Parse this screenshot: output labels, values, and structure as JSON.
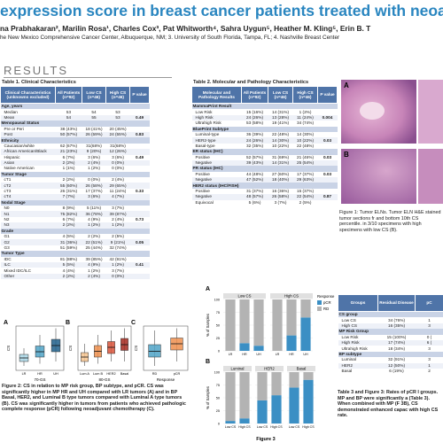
{
  "header": {
    "title": "expression score in breast cancer patients treated with neoad",
    "authors": "na Prabhakaran², Marilin Rosa¹, Charles Cox³, Pat Whitworth⁴, Sahra Uygun⁵, Heather M. Kling⁵, Erin B. T",
    "affiliations": "he New Mexico Comprehensive Cancer Center, Albuquerque, NM; 3. University of South Florida, Tampa, FL; 4. Nashville Breast Center"
  },
  "section": "RESULTS",
  "table1": {
    "title": "Table 1. Clinical Characteristics",
    "columns": [
      "Clinical Characteristics (unknowns excluded)",
      "All Patients (n=92)",
      "Low CS (n=46)",
      "High CS (n=46)",
      "P value"
    ],
    "rows": [
      [
        "Age, years"
      ],
      [
        "Median",
        "53",
        "54",
        "53"
      ],
      [
        "Mean",
        "54",
        "55",
        "53",
        "0.49"
      ],
      [
        "Menopausal Status"
      ],
      [
        "Pre or Peri",
        "38 (43%)",
        "18 (41%)",
        "20 (45%)"
      ],
      [
        "Post",
        "50 (57%)",
        "26 (59%)",
        "24 (55%)",
        "0.83"
      ],
      [
        "Ethnicity"
      ],
      [
        "Caucasian/white",
        "62 (67%)",
        "31(68%)",
        "31(68%)"
      ],
      [
        "African American/Black",
        "21 (23%)",
        "9 (20%)",
        "12 (26%)"
      ],
      [
        "Hispanic",
        "6 (7%)",
        "3 (6%)",
        "3 (6%)",
        "0.49"
      ],
      [
        "Asian",
        "2 (2%)",
        "2 (4%)",
        "0 (0%)"
      ],
      [
        "Native American",
        "1 (1%)",
        "1 (2%)",
        "0 (0%)"
      ],
      [
        "Tumor Stage"
      ],
      [
        "cT1",
        "2 (2%)",
        "0 (0%)",
        "2 (4%)"
      ],
      [
        "cT2",
        "55 (60%)",
        "26 (58%)",
        "29 (65%)"
      ],
      [
        "cT3",
        "26 (31%)",
        "17 (37%)",
        "11 (24%)",
        "0.33"
      ],
      [
        "cT4",
        "7 (7%)",
        "3 (6%)",
        "4 (7%)"
      ],
      [
        "Nodal Stage"
      ],
      [
        "N0",
        "8 (9%)",
        "5 (11%)",
        "3 (7%)"
      ],
      [
        "N1",
        "75 (82%)",
        "36 (78%)",
        "39 (87%)"
      ],
      [
        "N2",
        "6 (7%)",
        "4 (9%)",
        "2 (4%)",
        "0.73"
      ],
      [
        "N3",
        "2 (2%)",
        "1 (2%)",
        "1 (2%)"
      ],
      [
        "Grade"
      ],
      [
        "G1",
        "4 (5%)",
        "2 (2%)",
        "2 (5%)"
      ],
      [
        "G2",
        "31 (36%)",
        "22 (51%)",
        "9 (21%)",
        "0.05"
      ],
      [
        "G3",
        "51 (59%)",
        "25 (44%)",
        "32 (74%)"
      ],
      [
        "Tumor Type"
      ],
      [
        "IDC",
        "81 (88%)",
        "39 (85%)",
        "42 (91%)"
      ],
      [
        "ILC",
        "5 (5%)",
        "4 (9%)",
        "1 (2%)",
        "0.41"
      ],
      [
        "Mixed IDC/ILC",
        "4 (4%)",
        "1 (2%)",
        "3 (7%)"
      ],
      [
        "Other",
        "2 (2%)",
        "2 (4%)",
        "0 (0%)"
      ]
    ]
  },
  "table2": {
    "title": "Table 2. Molecular and Pathology Characteristics",
    "columns": [
      "Molecular and Pathology Results",
      "All Patients (n=92)",
      "Low CS (n=46)",
      "High CS (n=46)",
      "P value"
    ],
    "rows": [
      [
        "MammaPrint Result"
      ],
      [
        "Low Risk",
        "15 (16%)",
        "14 (31%)",
        "1 (2%)"
      ],
      [
        "High Risk",
        "24 (26%)",
        "13 (28%)",
        "11 (24%)",
        "0.004"
      ],
      [
        "Ultrahigh Risk",
        "53 (58%)",
        "19 (41%)",
        "34 (74%)"
      ],
      [
        "BluePrint Subtype"
      ],
      [
        "Luminal-type",
        "36 (39%)",
        "22 (48%)",
        "14 (30%)"
      ],
      [
        "HER2-type",
        "24 (26%)",
        "14 (30%)",
        "10 (22%)",
        "0.03"
      ],
      [
        "Basal-type",
        "32 (35%)",
        "10 (22%)",
        "22 (48%)"
      ],
      [
        "ER status (IHC)"
      ],
      [
        "Positive",
        "52 (57%)",
        "31 (69%)",
        "21 (46%)",
        "0.03"
      ],
      [
        "Negative",
        "39 (43%)",
        "14 (31%)",
        "25 (54%)"
      ],
      [
        "PR status (IHC)"
      ],
      [
        "Positive",
        "44 (48%)",
        "27 (60%)",
        "17 (37%)",
        "0.03"
      ],
      [
        "Negative",
        "47 (52%)",
        "18 (40%)",
        "29 (63%)"
      ],
      [
        "HER2 status (IHC/FISH)"
      ],
      [
        "Positive",
        "31 (37%)",
        "16 (36%)",
        "15 (37%)"
      ],
      [
        "Negative",
        "48 (57%)",
        "26 (58%)",
        "22 (54%)",
        "0.87"
      ],
      [
        "Equivocal",
        "5 (6%)",
        "3 (7%)",
        "2 (5%)"
      ]
    ]
  },
  "figure1": {
    "panels": [
      "A",
      "B"
    ],
    "caption": "Figure 1: Tumor ELNs. Tumor ELN H&E stained tumor sections fr and bottom 10th CS percentile. in 3/10 specimens with high specimens with low CS (B)."
  },
  "figure2": {
    "ylabel": "CS",
    "panels": [
      {
        "label": "A",
        "xlabel": "70-GS",
        "categories": [
          "LR",
          "HR",
          "UH"
        ],
        "colors": [
          "#a9d6e5",
          "#4fa3c7",
          "#1f5f8b"
        ],
        "ylim": [
          0,
          10
        ],
        "boxes": [
          [
            1,
            2,
            2.8,
            3.6,
            5
          ],
          [
            1.5,
            3,
            4.2,
            5.5,
            8
          ],
          [
            2,
            4.2,
            5.6,
            7,
            9.5
          ]
        ]
      },
      {
        "label": "B",
        "xlabel": "80-GS",
        "categories": [
          "Lum A",
          "Lum B",
          "HER2",
          "Basal"
        ],
        "colors": [
          "#f6c48f",
          "#ee8f4d",
          "#d9533a",
          "#a3291d"
        ],
        "ylim": [
          0,
          10
        ],
        "boxes": [
          [
            1,
            2,
            3,
            4,
            6
          ],
          [
            1.5,
            3,
            4.3,
            5.6,
            8
          ],
          [
            2,
            3.8,
            5.2,
            6.5,
            9
          ],
          [
            2,
            4.5,
            5.8,
            7.2,
            9.5
          ]
        ]
      },
      {
        "label": "C",
        "xlabel": "Response",
        "categories": [
          "RD",
          "pCR"
        ],
        "colors": [
          "#4fa3c7",
          "#ee8f4d"
        ],
        "ylim": [
          0,
          10
        ],
        "boxes": [
          [
            1,
            3,
            4.3,
            5.8,
            9
          ],
          [
            2,
            4.6,
            6,
            7.3,
            9.5
          ]
        ]
      }
    ],
    "caption": "Figure 2: CS in relation to MP risk group, BP subtype, and pCR. CS was significantly higher in MP HR and UH compared with LR tumors (A) and in BP Basal, HER2, and Luminal B type tumors compared with Luminal A type tumors (B). CS was significantly higher in tumors from patients who achieved pathologic complete response (pCR) following neoadjuvant chemotherapy (C)."
  },
  "figure3": {
    "type": "bar",
    "caption": "Figure 3",
    "ylabel": "% of Samples",
    "ylim": [
      0,
      100
    ],
    "yticks": [
      0,
      25,
      50,
      75,
      100
    ],
    "legend_title": "Response",
    "rows": [
      {
        "label": "A",
        "panels": [
          {
            "title": "Low CS",
            "categories": [
              "LR",
              "HR",
              "UH"
            ],
            "series": [
              {
                "name": "pCR",
                "color": "#3b8fc4",
                "values": [
                  0,
                  15,
                  10
                ]
              },
              {
                "name": "RD",
                "color": "#b3b3b3",
                "values": [
                  100,
                  85,
                  90
                ]
              }
            ]
          },
          {
            "title": "High CS",
            "categories": [
              "LR",
              "HR",
              "UH"
            ],
            "series": [
              {
                "name": "pCR",
                "color": "#3b8fc4",
                "values": [
                  0,
                  30,
                  65
                ]
              },
              {
                "name": "RD",
                "color": "#b3b3b3",
                "values": [
                  100,
                  70,
                  35
                ]
              }
            ]
          }
        ]
      },
      {
        "label": "B",
        "panels": [
          {
            "title": "Luminal",
            "categories": [
              "Low CS",
              "High CS"
            ],
            "series": [
              {
                "name": "pCR",
                "color": "#3b8fc4",
                "values": [
                  5,
                  10
                ]
              },
              {
                "name": "RD",
                "color": "#b3b3b3",
                "values": [
                  95,
                  90
                ]
              }
            ]
          },
          {
            "title": "HER2",
            "categories": [
              "Low CS",
              "High CS"
            ],
            "series": [
              {
                "name": "pCR",
                "color": "#3b8fc4",
                "values": [
                  45,
                  55
                ]
              },
              {
                "name": "RD",
                "color": "#b3b3b3",
                "values": [
                  55,
                  45
                ]
              }
            ]
          },
          {
            "title": "Basal",
            "categories": [
              "Low CS",
              "High CS"
            ],
            "series": [
              {
                "name": "pCR",
                "color": "#3b8fc4",
                "values": [
                  70,
                  85
                ]
              },
              {
                "name": "RD",
                "color": "#b3b3b3",
                "values": [
                  30,
                  15
                ]
              }
            ]
          }
        ]
      }
    ]
  },
  "table3": {
    "columns": [
      "Groups",
      "Residual Disease",
      "pC"
    ],
    "rows": [
      [
        "CS group"
      ],
      [
        "Low CS",
        "34 (76%)",
        "1"
      ],
      [
        "High CS",
        "16 (35%)",
        "3"
      ],
      [
        "MP Risk Group"
      ],
      [
        "Low Risk",
        "15 (100%)",
        "0 ("
      ],
      [
        "High Risk",
        "17 (74%)",
        "6 ("
      ],
      [
        "Ultrahigh Risk",
        "18 (34%)",
        "3"
      ],
      [
        "BP subtype"
      ],
      [
        "Luminal",
        "32 (91%)",
        "3"
      ],
      [
        "HER2",
        "12 (50%)",
        "1"
      ],
      [
        "Basal",
        "6 (19%)",
        "2"
      ]
    ],
    "caption": "Table 3 and Figure 3: Rates of pCR l groups. MP and BP were significantly a (Table 3). When combined with MP (F 3B), CS demonstrated enhanced capac with high CS rate."
  }
}
